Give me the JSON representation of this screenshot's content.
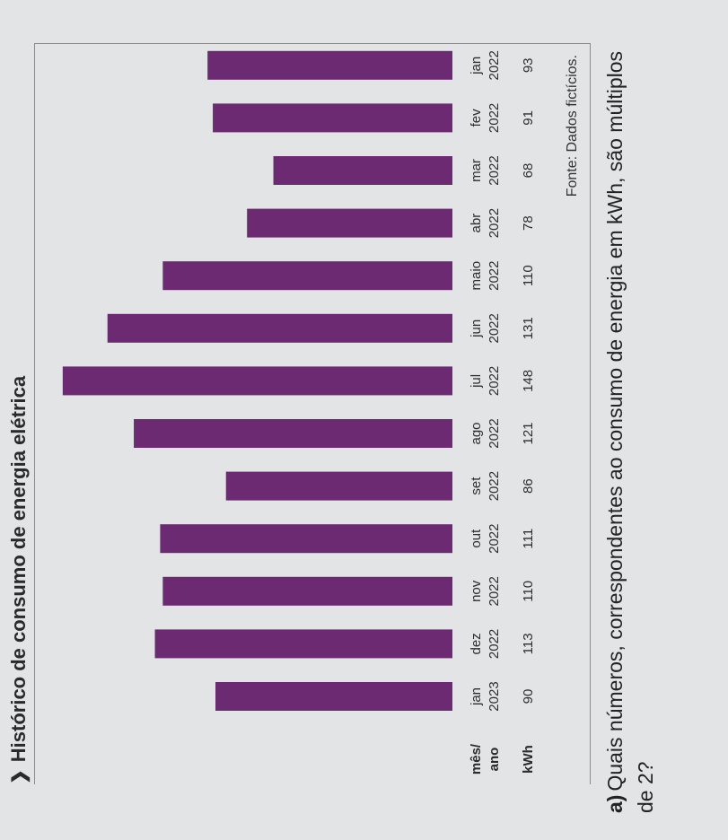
{
  "title": "Histórico de consumo de energia elétrica",
  "table_labels": {
    "month_year": "mês/ ano",
    "kwh": "kWh"
  },
  "source": "Fonte: Dados fictícios.",
  "question": {
    "label": "a)",
    "text": "Quais números, correspondentes ao consumo de energia em kWh, são múltiplos de 2?"
  },
  "colors": {
    "bar": "#6b2a72",
    "background": "#e2e4e6"
  },
  "chart_data": {
    "type": "bar",
    "orientation": "horizontal",
    "title": "Histórico de consumo de energia elétrica",
    "categories": [
      {
        "month": "jan",
        "year": "2023"
      },
      {
        "month": "dez",
        "year": "2022"
      },
      {
        "month": "nov",
        "year": "2022"
      },
      {
        "month": "out",
        "year": "2022"
      },
      {
        "month": "set",
        "year": "2022"
      },
      {
        "month": "ago",
        "year": "2022"
      },
      {
        "month": "jul",
        "year": "2022"
      },
      {
        "month": "jun",
        "year": "2022"
      },
      {
        "month": "maio",
        "year": "2022"
      },
      {
        "month": "abr",
        "year": "2022"
      },
      {
        "month": "mar",
        "year": "2022"
      },
      {
        "month": "fev",
        "year": "2022"
      },
      {
        "month": "jan",
        "year": "2022"
      }
    ],
    "values": [
      90,
      113,
      110,
      111,
      86,
      121,
      148,
      131,
      110,
      78,
      68,
      91,
      93
    ],
    "unit": "kWh",
    "xlim": [
      0,
      150
    ]
  }
}
